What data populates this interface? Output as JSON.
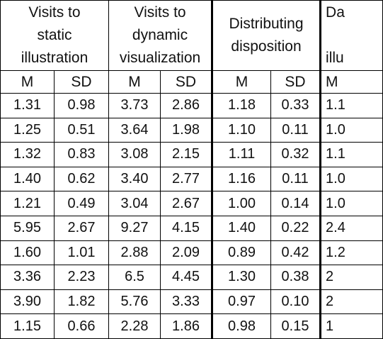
{
  "table": {
    "groups": [
      {
        "label_lines": [
          "Visits to",
          "static",
          "illustration"
        ]
      },
      {
        "label_lines": [
          "Visits to",
          "dynamic",
          "visualization"
        ]
      },
      {
        "label_lines": [
          "Distributing",
          "disposition"
        ]
      },
      {
        "label_lines": [
          "Da",
          "",
          "illu"
        ]
      }
    ],
    "subheaders": [
      "M",
      "SD",
      "M",
      "SD",
      "M",
      "SD",
      "M"
    ],
    "rows": [
      [
        "1.31",
        "0.98",
        "3.73",
        "2.86",
        "1.18",
        "0.33",
        "1.1"
      ],
      [
        "1.25",
        "0.51",
        "3.64",
        "1.98",
        "1.10",
        "0.11",
        "1.0"
      ],
      [
        "1.32",
        "0.83",
        "3.08",
        "2.15",
        "1.11",
        "0.32",
        "1.1"
      ],
      [
        "1.40",
        "0.62",
        "3.40",
        "2.77",
        "1.16",
        "0.11",
        "1.0"
      ],
      [
        "1.21",
        "0.49",
        "3.04",
        "2.67",
        "1.00",
        "0.14",
        "1.0"
      ],
      [
        "5.95",
        "2.67",
        "9.27",
        "4.15",
        "1.40",
        "0.22",
        "2.4"
      ],
      [
        "1.60",
        "1.01",
        "2.88",
        "2.09",
        "0.89",
        "0.42",
        "1.2"
      ],
      [
        "3.36",
        "2.23",
        "6.5",
        "4.45",
        "1.30",
        "0.38",
        "2"
      ],
      [
        "3.90",
        "1.82",
        "5.76",
        "3.33",
        "0.97",
        "0.10",
        "2"
      ],
      [
        "1.15",
        "0.66",
        "2.28",
        "1.86",
        "0.98",
        "0.15",
        "1"
      ]
    ]
  }
}
